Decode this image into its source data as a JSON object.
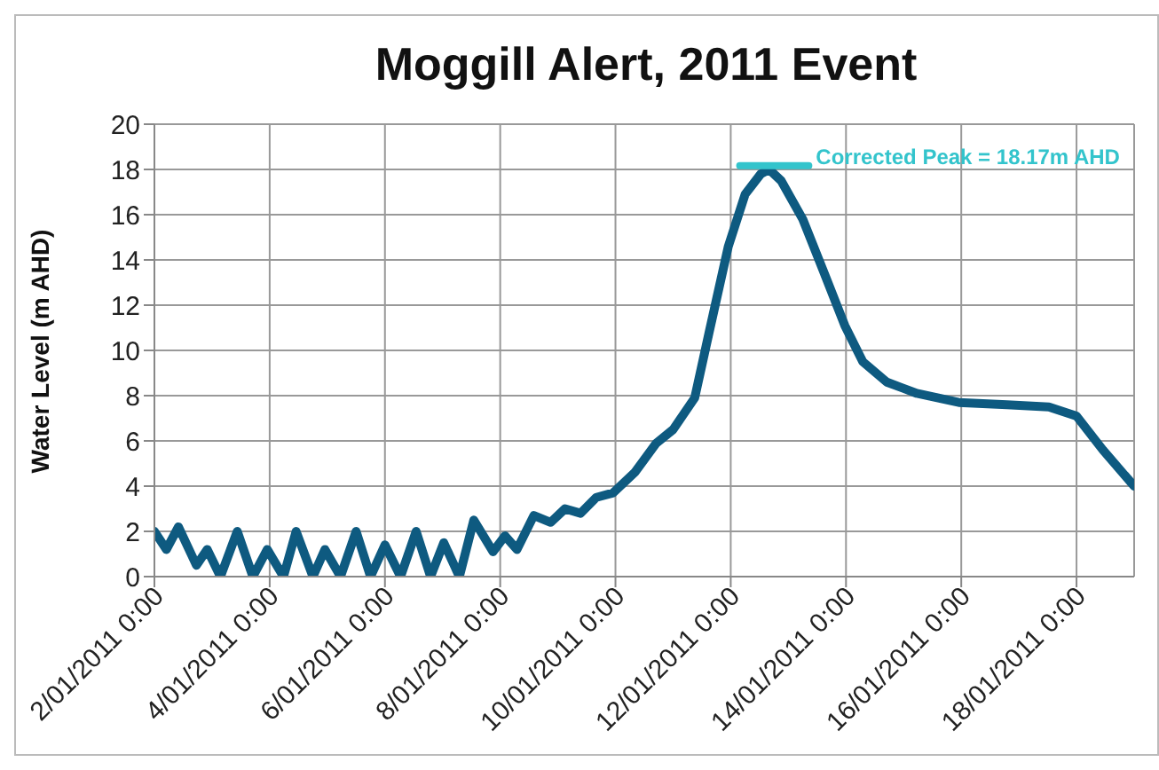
{
  "chart_data": {
    "type": "line",
    "title": "Moggill Alert, 2011 Event",
    "ylabel": "Water Level (m AHD)",
    "xlim": [
      "2011-01-02T00:00",
      "2011-01-19T00:00"
    ],
    "xticks": [
      {
        "value": "2011-01-02T00:00",
        "label": "2/01/2011 0:00"
      },
      {
        "value": "2011-01-04T00:00",
        "label": "4/01/2011 0:00"
      },
      {
        "value": "2011-01-06T00:00",
        "label": "6/01/2011 0:00"
      },
      {
        "value": "2011-01-08T00:00",
        "label": "8/01/2011 0:00"
      },
      {
        "value": "2011-01-10T00:00",
        "label": "10/01/2011 0:00"
      },
      {
        "value": "2011-01-12T00:00",
        "label": "12/01/2011 0:00"
      },
      {
        "value": "2011-01-14T00:00",
        "label": "14/01/2011 0:00"
      },
      {
        "value": "2011-01-16T00:00",
        "label": "16/01/2011 0:00"
      },
      {
        "value": "2011-01-18T00:00",
        "label": "18/01/2011 0:00"
      }
    ],
    "ylim": [
      0,
      20
    ],
    "yticks": [
      0,
      2,
      4,
      6,
      8,
      10,
      12,
      14,
      16,
      18,
      20
    ],
    "grid": true,
    "legend": false,
    "marker": "none",
    "line_style": "solid",
    "series": [
      {
        "color": "#0e5a80",
        "x": [
          "2011-01-02T00:00",
          "2011-01-02T05:00",
          "2011-01-02T10:00",
          "2011-01-02T17:30",
          "2011-01-02T22:00",
          "2011-01-03T03:30",
          "2011-01-03T10:30",
          "2011-01-03T17:00",
          "2011-01-03T23:00",
          "2011-01-04T05:45",
          "2011-01-04T11:00",
          "2011-01-04T18:00",
          "2011-01-04T23:00",
          "2011-01-05T05:30",
          "2011-01-05T12:00",
          "2011-01-05T18:00",
          "2011-01-06T00:00",
          "2011-01-06T06:30",
          "2011-01-06T13:00",
          "2011-01-06T19:00",
          "2011-01-07T00:30",
          "2011-01-07T07:00",
          "2011-01-07T13:00",
          "2011-01-07T21:00",
          "2011-01-08T02:00",
          "2011-01-08T07:00",
          "2011-01-08T14:00",
          "2011-01-08T21:00",
          "2011-01-09T03:00",
          "2011-01-09T09:30",
          "2011-01-09T16:00",
          "2011-01-09T23:00",
          "2011-01-10T08:00",
          "2011-01-10T17:00",
          "2011-01-11T00:00",
          "2011-01-11T09:00",
          "2011-01-11T15:00",
          "2011-01-11T23:00",
          "2011-01-12T06:00",
          "2011-01-12T12:30",
          "2011-01-12T16:00",
          "2011-01-12T21:00",
          "2011-01-13T06:00",
          "2011-01-13T15:00",
          "2011-01-13T23:30",
          "2011-01-14T07:00",
          "2011-01-14T17:00",
          "2011-01-15T05:30",
          "2011-01-15T23:00",
          "2011-01-16T19:00",
          "2011-01-17T12:30",
          "2011-01-18T00:00",
          "2011-01-18T11:00",
          "2011-01-19T00:00"
        ],
        "values": [
          2.0,
          1.2,
          2.2,
          0.5,
          1.2,
          0,
          2.0,
          0,
          1.2,
          0,
          2.0,
          0,
          1.2,
          0,
          2.0,
          0,
          1.4,
          0,
          2.0,
          0,
          1.5,
          0,
          2.5,
          1.1,
          1.8,
          1.2,
          2.7,
          2.4,
          3.0,
          2.8,
          3.5,
          3.7,
          4.6,
          5.9,
          6.5,
          7.9,
          10.8,
          14.6,
          16.9,
          17.8,
          18.0,
          17.5,
          15.8,
          13.4,
          11.1,
          9.5,
          8.6,
          8.1,
          7.7,
          7.6,
          7.5,
          7.1,
          5.6,
          4.0
        ]
      },
      {
        "color": "#33c4cc",
        "x": [
          "2011-01-12T03:45",
          "2011-01-13T08:30"
        ],
        "values": [
          18.17,
          18.17
        ]
      }
    ],
    "annotations": [
      {
        "text": "Corrected Peak = 18.17m AHD",
        "x": "2011-01-13T08:30",
        "y": 18.17
      }
    ]
  }
}
